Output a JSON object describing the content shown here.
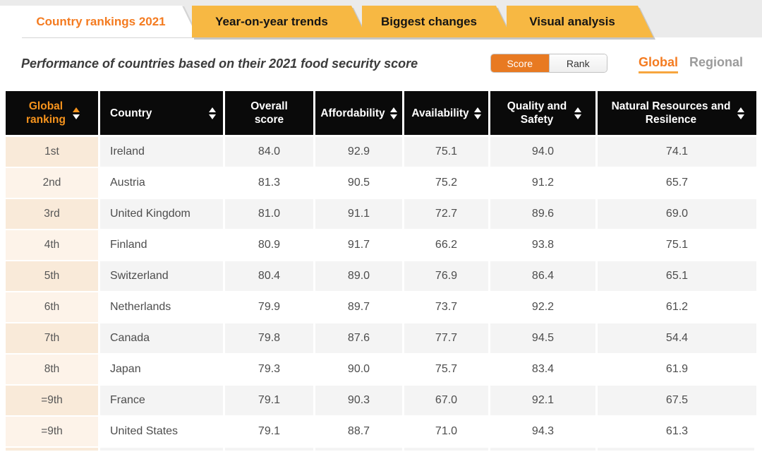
{
  "tabs": [
    {
      "label": "Country rankings 2021",
      "active": true
    },
    {
      "label": "Year-on-year trends",
      "active": false
    },
    {
      "label": "Biggest changes",
      "active": false
    },
    {
      "label": "Visual analysis",
      "active": false
    }
  ],
  "subheader": {
    "title": "Performance of countries based on their 2021 food security score",
    "score_rank_toggle": {
      "options": [
        "Score",
        "Rank"
      ],
      "selected": "Score"
    },
    "scope_switch": {
      "options": [
        "Global",
        "Regional"
      ],
      "selected": "Global"
    }
  },
  "table": {
    "columns": [
      {
        "label": "Global ranking",
        "sortable": true,
        "active_sort": "asc"
      },
      {
        "label": "Country",
        "sortable": true
      },
      {
        "label": "Overall score",
        "sortable": false
      },
      {
        "label": "Affordability",
        "sortable": true
      },
      {
        "label": "Availability",
        "sortable": true
      },
      {
        "label": "Quality and Safety",
        "sortable": true
      },
      {
        "label": "Natural Resources and Resilence",
        "sortable": true
      }
    ],
    "rows": [
      {
        "rank": "1st",
        "country": "Ireland",
        "overall": "84.0",
        "affordability": "92.9",
        "availability": "75.1",
        "quality": "94.0",
        "natural": "74.1"
      },
      {
        "rank": "2nd",
        "country": "Austria",
        "overall": "81.3",
        "affordability": "90.5",
        "availability": "75.2",
        "quality": "91.2",
        "natural": "65.7"
      },
      {
        "rank": "3rd",
        "country": "United Kingdom",
        "overall": "81.0",
        "affordability": "91.1",
        "availability": "72.7",
        "quality": "89.6",
        "natural": "69.0"
      },
      {
        "rank": "4th",
        "country": "Finland",
        "overall": "80.9",
        "affordability": "91.7",
        "availability": "66.2",
        "quality": "93.8",
        "natural": "75.1"
      },
      {
        "rank": "5th",
        "country": "Switzerland",
        "overall": "80.4",
        "affordability": "89.0",
        "availability": "76.9",
        "quality": "86.4",
        "natural": "65.1"
      },
      {
        "rank": "6th",
        "country": "Netherlands",
        "overall": "79.9",
        "affordability": "89.7",
        "availability": "73.7",
        "quality": "92.2",
        "natural": "61.2"
      },
      {
        "rank": "7th",
        "country": "Canada",
        "overall": "79.8",
        "affordability": "87.6",
        "availability": "77.7",
        "quality": "94.5",
        "natural": "54.4"
      },
      {
        "rank": "8th",
        "country": "Japan",
        "overall": "79.3",
        "affordability": "90.0",
        "availability": "75.7",
        "quality": "83.4",
        "natural": "61.9"
      },
      {
        "rank": "=9th",
        "country": "France",
        "overall": "79.1",
        "affordability": "90.3",
        "availability": "67.0",
        "quality": "92.1",
        "natural": "67.5"
      },
      {
        "rank": "=9th",
        "country": "United States",
        "overall": "79.1",
        "affordability": "88.7",
        "availability": "71.0",
        "quality": "94.3",
        "natural": "61.3"
      }
    ]
  },
  "colors": {
    "accent_orange": "#f47b20",
    "tab_amber": "#f7b843",
    "header_bg": "#0a0a0a",
    "header_sort_active": "#f7941d",
    "row_alt_bg": "#f4f4f4",
    "rank_col_bg": "#f9ead9",
    "score_button_bg": "#e87a22",
    "regional_gray": "#9b9b9b"
  }
}
